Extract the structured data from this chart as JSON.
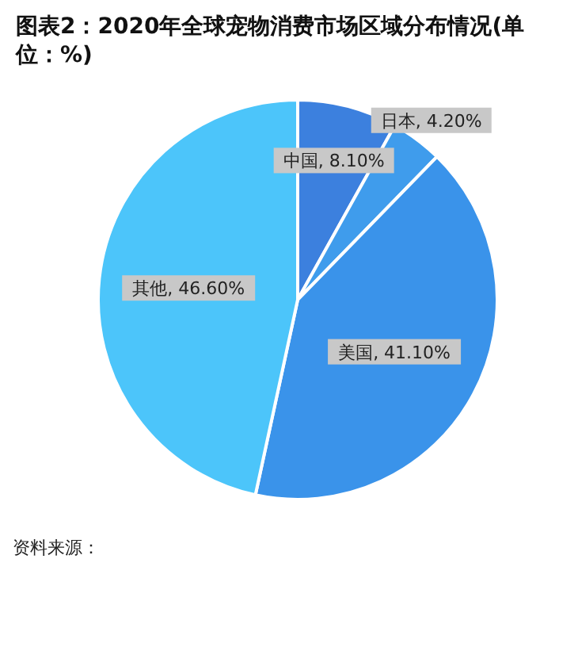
{
  "chart_data": {
    "type": "pie",
    "title": "图表2：2020年全球宠物消费市场区域分布情况(单位：%)",
    "categories": [
      "中国",
      "日本",
      "美国",
      "其他"
    ],
    "values": [
      8.1,
      4.2,
      41.1,
      46.6
    ],
    "colors": [
      "#3c80de",
      "#3f9cec",
      "#3a93ea",
      "#4cc5fa"
    ],
    "value_labels": [
      "8.10%",
      "4.20%",
      "41.10%",
      "46.60%"
    ],
    "annotations": [
      "资料来源："
    ]
  }
}
